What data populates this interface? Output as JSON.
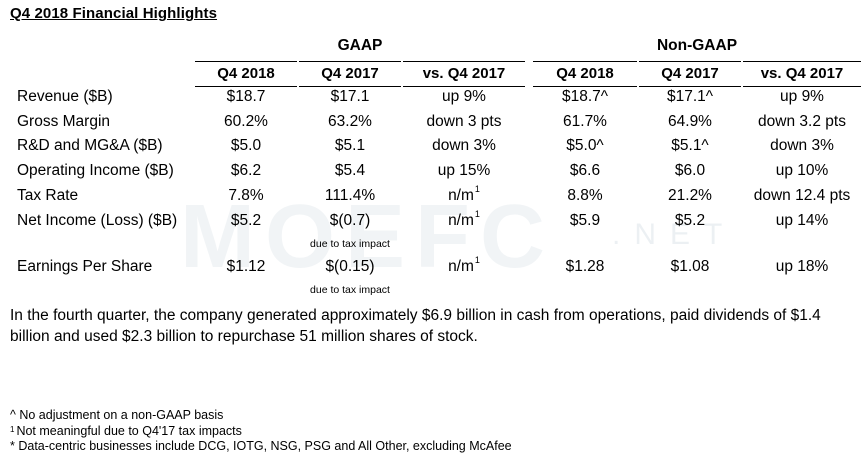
{
  "title": "Q4 2018 Financial Highlights",
  "groups": {
    "gaap": "GAAP",
    "non_gaap": "Non-GAAP"
  },
  "columns": [
    "Q4 2018",
    "Q4 2017",
    "vs. Q4 2017",
    "Q4 2018",
    "Q4 2017",
    "vs. Q4 2017"
  ],
  "rows": [
    {
      "label": "Revenue ($B)",
      "values": [
        "$18.7",
        "$17.1",
        "up 9%",
        "$18.7^",
        "$17.1^",
        "up 9%"
      ]
    },
    {
      "label": "Gross Margin",
      "values": [
        "60.2%",
        "63.2%",
        "down 3 pts",
        "61.7%",
        "64.9%",
        "down 3.2 pts"
      ]
    },
    {
      "label": "R&D and MG&A ($B)",
      "values": [
        "$5.0",
        "$5.1",
        "down 3%",
        "$5.0^",
        "$5.1^",
        "down 3%"
      ]
    },
    {
      "label": "Operating Income ($B)",
      "values": [
        "$6.2",
        "$5.4",
        "up 15%",
        "$6.6",
        "$6.0",
        "up 10%"
      ]
    },
    {
      "label": "Tax Rate",
      "values": [
        "7.8%",
        "111.4%",
        "n/m",
        "8.8%",
        "21.2%",
        "down 12.4 pts"
      ]
    },
    {
      "label": "Net Income (Loss) ($B)",
      "values": [
        "$5.2",
        "$(0.7)",
        "n/m",
        "$5.9",
        "$5.2",
        "up 14%"
      ]
    },
    {
      "label": "Earnings Per Share",
      "values": [
        "$1.12",
        "$(0.15)",
        "n/m",
        "$1.28",
        "$1.08",
        "up 18%"
      ]
    }
  ],
  "footnote_marker": "1",
  "tax_note": "due to tax impact",
  "paragraph": "In the fourth quarter, the company generated approximately $6.9 billion in cash from operations, paid dividends of $1.4 billion and used $2.3 billion to repurchase 51 million shares of stock.",
  "footnotes": {
    "caret": "^ No adjustment on a non-GAAP basis",
    "one_marker": "1",
    "one": "Not meaningful due to Q4'17 tax impacts",
    "star": "* Data-centric businesses include DCG, IOTG, NSG, PSG and All Other, excluding McAfee"
  },
  "watermark": {
    "main": "MOEFC",
    "sub": ".NET"
  }
}
